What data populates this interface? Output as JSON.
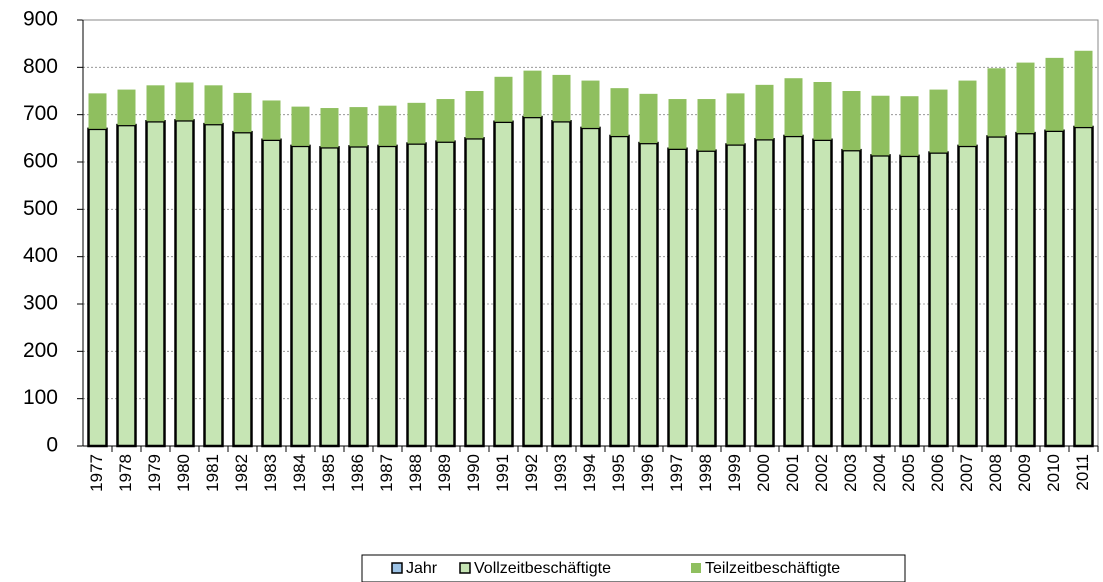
{
  "chart_data": {
    "type": "stacked_bar",
    "categories": [
      "1977",
      "1978",
      "1979",
      "1980",
      "1981",
      "1982",
      "1983",
      "1984",
      "1985",
      "1986",
      "1987",
      "1988",
      "1989",
      "1990",
      "1991",
      "1992",
      "1993",
      "1994",
      "1995",
      "1996",
      "1997",
      "1998",
      "1999",
      "2000",
      "2001",
      "2002",
      "2003",
      "2004",
      "2005",
      "2006",
      "2007",
      "2008",
      "2009",
      "2010",
      "2011"
    ],
    "series": [
      {
        "name": "Jahr",
        "color": "#9dc3e6",
        "values": [
          null,
          null,
          null,
          null,
          null,
          null,
          null,
          null,
          null,
          null,
          null,
          null,
          null,
          null,
          null,
          null,
          null,
          null,
          null,
          null,
          null,
          null,
          null,
          null,
          null,
          null,
          null,
          null,
          null,
          null,
          null,
          null,
          null,
          null,
          null
        ]
      },
      {
        "name": "Vollzeitbeschäftigte",
        "color": "#c6e5b4",
        "values": [
          670,
          678,
          686,
          688,
          680,
          663,
          647,
          634,
          631,
          633,
          634,
          639,
          643,
          650,
          685,
          695,
          686,
          672,
          655,
          640,
          628,
          624,
          637,
          648,
          655,
          647,
          625,
          614,
          613,
          620,
          634,
          654,
          661,
          666,
          674
        ]
      },
      {
        "name": "Teilzeitbeschäftigte",
        "color": "#8fbf5f",
        "values": [
          75,
          75,
          76,
          80,
          82,
          83,
          83,
          83,
          83,
          83,
          85,
          86,
          90,
          100,
          95,
          98,
          98,
          100,
          101,
          104,
          105,
          109,
          108,
          115,
          122,
          122,
          125,
          126,
          126,
          133,
          138,
          144,
          149,
          154,
          161
        ]
      }
    ],
    "ylim": [
      0,
      900
    ],
    "yticks": [
      0,
      100,
      200,
      300,
      400,
      500,
      600,
      700,
      800,
      900
    ],
    "grid": true,
    "legend": "bottom"
  }
}
